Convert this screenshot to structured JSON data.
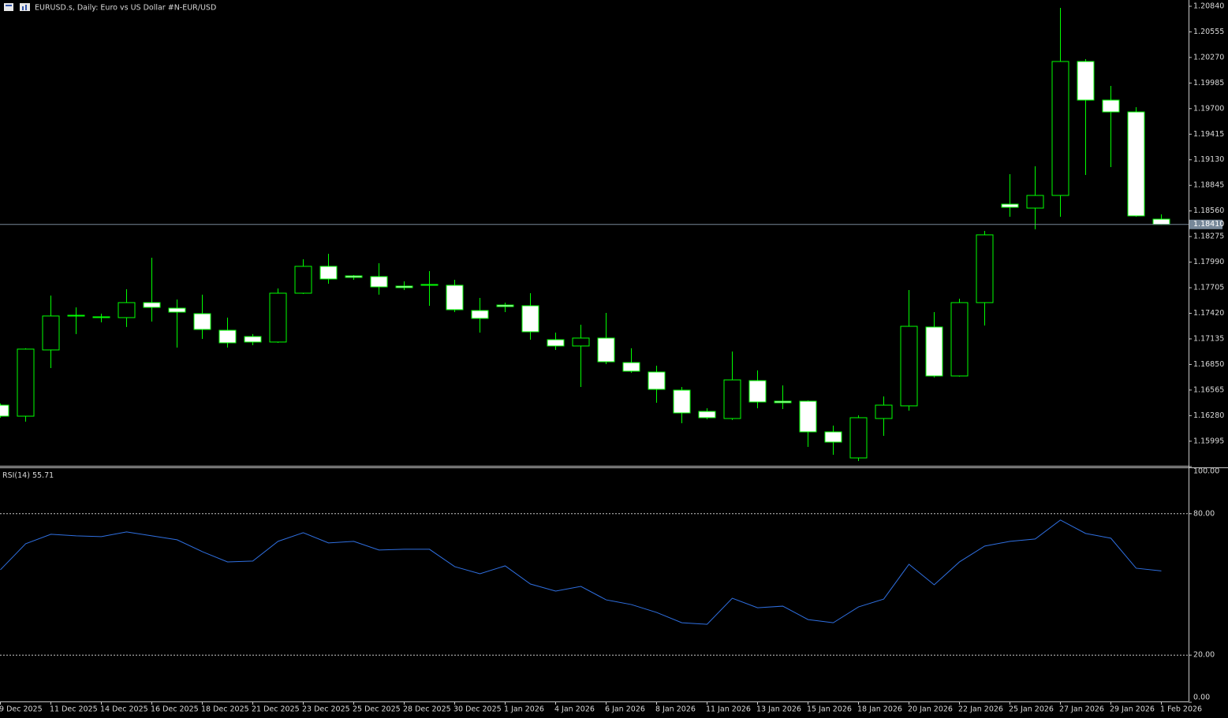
{
  "chart_data": [
    {
      "type": "candlestick",
      "title": "EURUSD.s, Daily:  Euro vs US Dollar #N-EUR/USD",
      "categories": [
        "9 Dec 2025",
        null,
        "11 Dec 2025",
        null,
        "14 Dec 2025",
        null,
        "16 Dec 2025",
        null,
        "18 Dec 2025",
        null,
        "21 Dec 2025",
        null,
        "23 Dec 2025",
        null,
        "25 Dec 2025",
        null,
        "28 Dec 2025",
        null,
        "30 Dec 2025",
        null,
        "1 Jan 2026",
        null,
        "4 Jan 2026",
        null,
        "6 Jan 2026",
        null,
        "8 Jan 2026",
        null,
        "11 Jan 2026",
        null,
        "13 Jan 2026",
        null,
        "15 Jan 2026",
        null,
        "18 Jan 2026",
        null,
        "20 Jan 2026",
        null,
        "22 Jan 2026",
        null,
        "25 Jan 2026",
        null,
        "27 Jan 2026",
        null,
        "29 Jan 2026",
        null,
        "1 Feb 2026"
      ],
      "open": [
        1.16397,
        1.16274,
        1.17012,
        1.1739,
        1.17381,
        1.17372,
        1.17539,
        1.17477,
        1.17416,
        1.17231,
        1.17161,
        1.171,
        1.17644,
        1.17943,
        1.17837,
        1.17829,
        1.17723,
        1.17741,
        1.17732,
        1.17451,
        1.17512,
        1.17504,
        1.17126,
        1.17056,
        1.17144,
        1.16871,
        1.16766,
        1.16564,
        1.16327,
        1.16248,
        1.1667,
        1.16441,
        1.16441,
        1.16099,
        1.15809,
        1.16248,
        1.16389,
        1.17267,
        1.16722,
        1.17539,
        1.18636,
        1.18592,
        1.18733,
        1.20225,
        1.19795,
        1.19663,
        1.18469
      ],
      "high": [
        1.16415,
        1.1703,
        1.17618,
        1.17486,
        1.17416,
        1.17688,
        1.18039,
        1.17574,
        1.17627,
        1.17372,
        1.17188,
        1.17697,
        1.18022,
        1.18083,
        1.17846,
        1.17978,
        1.17776,
        1.1789,
        1.17793,
        1.17591,
        1.17539,
        1.17644,
        1.17205,
        1.17293,
        1.17425,
        1.1703,
        1.16836,
        1.16599,
        1.16362,
        1.16994,
        1.16784,
        1.16617,
        1.1645,
        1.16169,
        1.16283,
        1.16494,
        1.17679,
        1.17433,
        1.17583,
        1.18338,
        1.1897,
        1.19058,
        1.20822,
        1.20252,
        1.19953,
        1.19716,
        1.18522
      ],
      "low": [
        1.16257,
        1.16213,
        1.1681,
        1.17188,
        1.17319,
        1.17267,
        1.17328,
        1.17038,
        1.17135,
        1.17038,
        1.17065,
        1.17091,
        1.17635,
        1.17749,
        1.17793,
        1.17627,
        1.17679,
        1.17504,
        1.17433,
        1.17205,
        1.17433,
        1.17126,
        1.17012,
        1.16599,
        1.16854,
        1.16757,
        1.16424,
        1.16195,
        1.16239,
        1.16231,
        1.16362,
        1.16353,
        1.15932,
        1.15844,
        1.15774,
        1.16055,
        1.16336,
        1.16705,
        1.16714,
        1.17284,
        1.18496,
        1.18355,
        1.18496,
        1.18961,
        1.19049,
        1.18496,
        1.18405
      ],
      "close": [
        1.16274,
        1.17021,
        1.1739,
        1.17398,
        1.17372,
        1.17539,
        1.17486,
        1.17433,
        1.1724,
        1.17091,
        1.171,
        1.17644,
        1.17943,
        1.17802,
        1.1782,
        1.17714,
        1.17706,
        1.17732,
        1.1746,
        1.17363,
        1.17495,
        1.17214,
        1.17056,
        1.17144,
        1.1688,
        1.16775,
        1.16573,
        1.1631,
        1.16257,
        1.16678,
        1.16432,
        1.16424,
        1.16099,
        1.15985,
        1.16257,
        1.16397,
        1.17275,
        1.16722,
        1.17539,
        1.18294,
        1.18601,
        1.18733,
        1.20225,
        1.19795,
        1.19663,
        1.18505,
        1.1841
      ],
      "up_color": "#000000",
      "down_color": "#ffffff",
      "wick_color": "#00ff00",
      "ylim": [
        1.1573,
        1.2091
      ],
      "yticks": [
        {
          "value": 1.2084,
          "label": "1.20840"
        },
        {
          "value": 1.20555,
          "label": "1.20555"
        },
        {
          "value": 1.2027,
          "label": "1.20270"
        },
        {
          "value": 1.19985,
          "label": "1.19985"
        },
        {
          "value": 1.197,
          "label": "1.19700"
        },
        {
          "value": 1.19415,
          "label": "1.19415"
        },
        {
          "value": 1.1913,
          "label": "1.19130"
        },
        {
          "value": 1.18845,
          "label": "1.18845"
        },
        {
          "value": 1.1856,
          "label": "1.18560"
        },
        {
          "value": 1.18275,
          "label": "1.18275"
        },
        {
          "value": 1.1799,
          "label": "1.17990"
        },
        {
          "value": 1.17705,
          "label": "1.17705"
        },
        {
          "value": 1.1742,
          "label": "1.17420"
        },
        {
          "value": 1.17135,
          "label": "1.17135"
        },
        {
          "value": 1.1685,
          "label": "1.16850"
        },
        {
          "value": 1.16565,
          "label": "1.16565"
        },
        {
          "value": 1.1628,
          "label": "1.16280"
        },
        {
          "value": 1.15995,
          "label": "1.15995"
        }
      ],
      "current_price": {
        "value": 1.1841,
        "label": "1.18410"
      },
      "current_price_color": "#778899",
      "grid": false
    },
    {
      "type": "line",
      "title": "RSI(14)",
      "values": [
        56.2,
        67.26,
        71.28,
        70.61,
        70.28,
        72.29,
        70.61,
        68.94,
        63.91,
        59.55,
        59.89,
        68.27,
        71.95,
        67.6,
        68.27,
        64.58,
        64.91,
        64.91,
        57.54,
        54.52,
        57.87,
        50.16,
        47.15,
        49.16,
        43.46,
        41.45,
        38.1,
        33.74,
        33.07,
        44.13,
        40.11,
        40.78,
        35.08,
        33.74,
        40.44,
        43.79,
        58.55,
        49.83,
        59.55,
        66.26,
        68.27,
        69.27,
        77.32,
        71.62,
        69.61,
        56.87,
        55.71
      ],
      "color": "#2f6fe0",
      "ylim": [
        0,
        100
      ],
      "yticks": [
        {
          "value": 100,
          "label": "100.00"
        },
        {
          "value": 80,
          "label": "80.00"
        },
        {
          "value": 20,
          "label": "20.00"
        },
        {
          "value": 0,
          "label": "0.00"
        }
      ],
      "grid": false
    }
  ]
}
